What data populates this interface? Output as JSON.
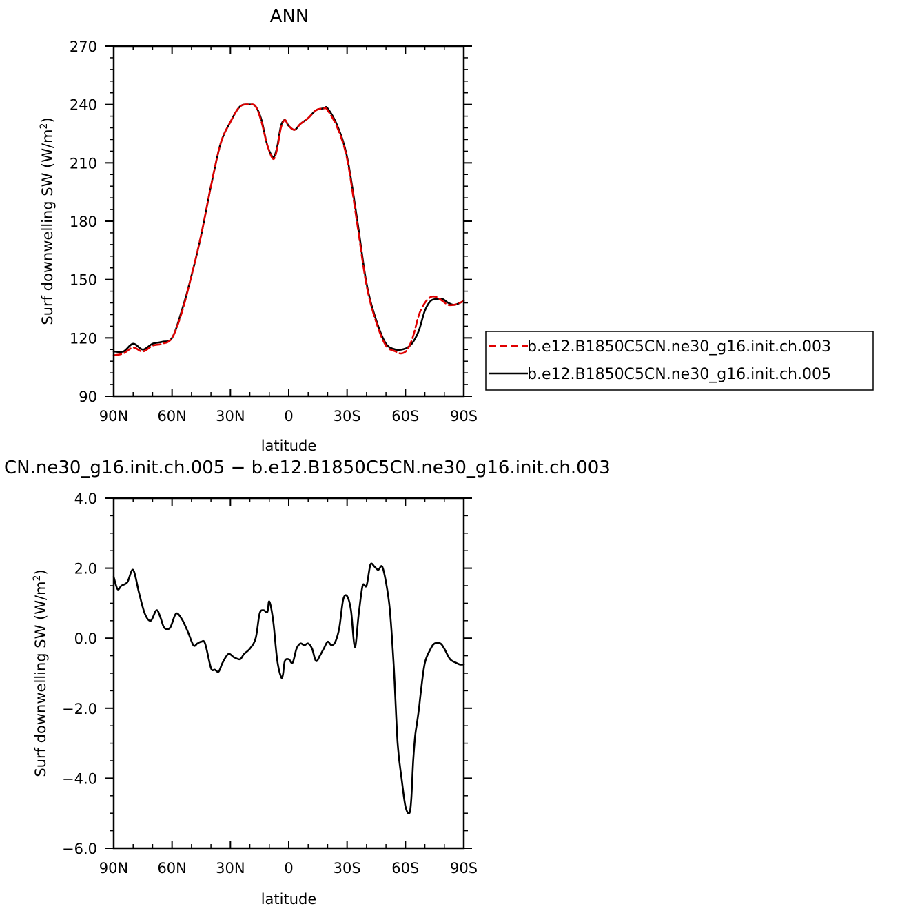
{
  "chart_data": [
    {
      "type": "line",
      "title": "ANN",
      "xlabel": "latitude",
      "ylabel": "Surf downwelling SW (W/m²)",
      "ylabel_main": "Surf downwelling SW (W/m",
      "ylabel_sup": "2",
      "ylabel_end": ")",
      "xlim": [
        90,
        -90
      ],
      "ylim": [
        90,
        270
      ],
      "xticks": [
        {
          "value": 90,
          "label": "90N"
        },
        {
          "value": 60,
          "label": "60N"
        },
        {
          "value": 30,
          "label": "30N"
        },
        {
          "value": 0,
          "label": "0"
        },
        {
          "value": -30,
          "label": "30S"
        },
        {
          "value": -60,
          "label": "60S"
        },
        {
          "value": -90,
          "label": "90S"
        }
      ],
      "yticks": [
        {
          "value": 90,
          "label": "90"
        },
        {
          "value": 120,
          "label": "120"
        },
        {
          "value": 150,
          "label": "150"
        },
        {
          "value": 180,
          "label": "180"
        },
        {
          "value": 210,
          "label": "210"
        },
        {
          "value": 240,
          "label": "240"
        },
        {
          "value": 270,
          "label": "270"
        }
      ],
      "legend_position": "right",
      "series": [
        {
          "name": "b.e12.B1850C5CN.ne30_g16.init.ch.003",
          "color": "#e00000",
          "dash": "dashed",
          "x": [
            90,
            85,
            80,
            75,
            70,
            65,
            60,
            55,
            50,
            45,
            40,
            35,
            30,
            25,
            20,
            17,
            14,
            11,
            8,
            6,
            4,
            2,
            0,
            -3,
            -6,
            -10,
            -14,
            -18,
            -20,
            -25,
            -30,
            -35,
            -40,
            -45,
            -50,
            -55,
            -58,
            -61,
            -64,
            -67,
            -70,
            -73,
            -76,
            -79,
            -82,
            -85,
            -88,
            -90
          ],
          "y": [
            111,
            112,
            115,
            113,
            116,
            117,
            120,
            133,
            152,
            173,
            198,
            220,
            231,
            239,
            240,
            239,
            231,
            219,
            212,
            217,
            228,
            232,
            229,
            227,
            230,
            233,
            237,
            238,
            237,
            228,
            212,
            180,
            147,
            128,
            116,
            113,
            112,
            114,
            121,
            132,
            138,
            141,
            141,
            139,
            137,
            137,
            138,
            139
          ]
        },
        {
          "name": "b.e12.B1850C5CN.ne30_g16.init.ch.005",
          "color": "#000000",
          "dash": "solid",
          "x": [
            90,
            85,
            80,
            75,
            70,
            65,
            60,
            55,
            50,
            45,
            40,
            35,
            30,
            25,
            20,
            17,
            14,
            11,
            8,
            6,
            4,
            2,
            0,
            -3,
            -6,
            -10,
            -14,
            -18,
            -20,
            -25,
            -30,
            -35,
            -40,
            -45,
            -50,
            -55,
            -58,
            -61,
            -64,
            -67,
            -70,
            -73,
            -76,
            -79,
            -82,
            -85,
            -88,
            -90
          ],
          "y": [
            113,
            113,
            117,
            114,
            117,
            118,
            120,
            134,
            152,
            173,
            198,
            220,
            231,
            239,
            240,
            239,
            232,
            219,
            213,
            218,
            229,
            232,
            229,
            227,
            230,
            233,
            237,
            238,
            238,
            229,
            213,
            182,
            148,
            129,
            117,
            114,
            114,
            115,
            118,
            124,
            134,
            139,
            140,
            140,
            138,
            137,
            138,
            139
          ]
        }
      ]
    },
    {
      "type": "line",
      "title": "CN.ne30_g16.init.ch.005 − b.e12.B1850C5CN.ne30_g16.init.ch.003",
      "xlabel": "latitude",
      "ylabel": "Surf downwelling SW (W/m²)",
      "ylabel_main": "Surf downwelling SW (W/m",
      "ylabel_sup": "2",
      "ylabel_end": ")",
      "xlim": [
        90,
        -90
      ],
      "ylim": [
        -6,
        4
      ],
      "xticks": [
        {
          "value": 90,
          "label": "90N"
        },
        {
          "value": 60,
          "label": "60N"
        },
        {
          "value": 30,
          "label": "30N"
        },
        {
          "value": 0,
          "label": "0"
        },
        {
          "value": -30,
          "label": "30S"
        },
        {
          "value": -60,
          "label": "60S"
        },
        {
          "value": -90,
          "label": "90S"
        }
      ],
      "yticks": [
        {
          "value": -6,
          "label": "−6.0"
        },
        {
          "value": -4,
          "label": "−4.0"
        },
        {
          "value": -2,
          "label": "−2.0"
        },
        {
          "value": 0,
          "label": "0.0"
        },
        {
          "value": 2,
          "label": "2.0"
        },
        {
          "value": 4,
          "label": "4.0"
        }
      ],
      "series": [
        {
          "name": "",
          "color": "#000000",
          "dash": "solid",
          "x": [
            90,
            88,
            86,
            83,
            80,
            77,
            74,
            71,
            68,
            66,
            64,
            61,
            58,
            55,
            52,
            49,
            47,
            45,
            43,
            40,
            38,
            36,
            34,
            31,
            28,
            25,
            23,
            20,
            17,
            15,
            13,
            11,
            10,
            8,
            6,
            4,
            3,
            2,
            0,
            -2,
            -4,
            -6,
            -8,
            -10,
            -12,
            -14,
            -16,
            -18,
            -20,
            -22,
            -24,
            -26,
            -28,
            -30,
            -32,
            -34,
            -36,
            -38,
            -40,
            -42,
            -44,
            -46,
            -48,
            -50,
            -52,
            -54,
            -56,
            -58,
            -60,
            -62,
            -63,
            -64,
            -65,
            -66,
            -67,
            -68,
            -70,
            -73,
            -75,
            -78,
            -80,
            -83,
            -86,
            -88,
            -90
          ],
          "y": [
            1.75,
            1.4,
            1.5,
            1.6,
            1.95,
            1.3,
            0.7,
            0.5,
            0.8,
            0.6,
            0.3,
            0.3,
            0.7,
            0.55,
            0.2,
            -0.2,
            -0.15,
            -0.1,
            -0.15,
            -0.85,
            -0.9,
            -0.95,
            -0.7,
            -0.45,
            -0.55,
            -0.6,
            -0.45,
            -0.3,
            0.0,
            0.7,
            0.8,
            0.75,
            1.05,
            0.5,
            -0.6,
            -1.1,
            -1.05,
            -0.65,
            -0.6,
            -0.7,
            -0.3,
            -0.15,
            -0.2,
            -0.15,
            -0.3,
            -0.65,
            -0.5,
            -0.3,
            -0.1,
            -0.2,
            -0.1,
            0.3,
            1.1,
            1.2,
            0.8,
            -0.25,
            0.7,
            1.5,
            1.5,
            2.1,
            2.05,
            1.95,
            2.05,
            1.6,
            0.8,
            -0.8,
            -3.0,
            -4.0,
            -4.8,
            -5.0,
            -4.6,
            -3.5,
            -2.8,
            -2.4,
            -2.0,
            -1.5,
            -0.7,
            -0.3,
            -0.15,
            -0.15,
            -0.3,
            -0.6,
            -0.7,
            -0.75,
            -0.75
          ]
        }
      ]
    }
  ]
}
